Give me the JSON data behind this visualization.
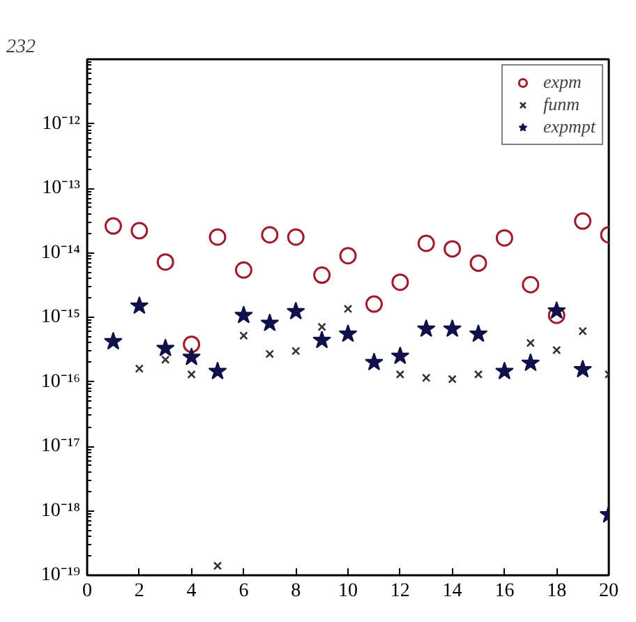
{
  "chart_data": {
    "type": "scatter",
    "x": [
      1,
      2,
      3,
      4,
      5,
      6,
      7,
      8,
      9,
      10,
      11,
      12,
      13,
      14,
      15,
      16,
      17,
      18,
      19,
      20
    ],
    "series": [
      {
        "name": "expm",
        "color": "#a01c2c",
        "marker": "circle",
        "values": [
          2.6e-14,
          2.2e-14,
          7.2e-15,
          3.8e-16,
          1.75e-14,
          5.4e-15,
          1.9e-14,
          1.75e-14,
          4.5e-15,
          9e-15,
          1.6e-15,
          3.5e-15,
          1.4e-14,
          1.15e-14,
          6.9e-15,
          1.7e-14,
          3.2e-15,
          1.07e-15,
          3.1e-14,
          1.9e-14
        ]
      },
      {
        "name": "funm",
        "color": "#333333",
        "marker": "cross",
        "values": [
          null,
          1.6e-16,
          2.2e-16,
          1.3e-16,
          1.4e-19,
          5.2e-16,
          2.7e-16,
          3e-16,
          7.1e-16,
          1.35e-15,
          null,
          1.3e-16,
          1.15e-16,
          1.1e-16,
          1.3e-16,
          null,
          4e-16,
          3.1e-16,
          6.1e-16,
          1.3e-16
        ]
      },
      {
        "name": "expmpt",
        "color": "#10104a",
        "marker": "star",
        "values": [
          4.2e-16,
          1.5e-15,
          3.3e-16,
          2.4e-16,
          1.45e-16,
          1.07e-15,
          8.1e-16,
          1.23e-15,
          4.4e-16,
          5.5e-16,
          2e-16,
          2.5e-16,
          6.6e-16,
          6.6e-16,
          5.5e-16,
          1.45e-16,
          1.95e-16,
          1.26e-15,
          1.55e-16,
          8.7e-19
        ]
      }
    ],
    "log": "y",
    "xlim": [
      0,
      20
    ],
    "xticks": [
      0,
      2,
      4,
      6,
      8,
      10,
      12,
      14,
      16,
      18,
      20
    ],
    "ylim": [
      1e-19,
      1e-11
    ],
    "yticks": [
      {
        "value": 1e-19,
        "label": "10⁻¹⁹"
      },
      {
        "value": 1e-18,
        "label": "10⁻¹⁸"
      },
      {
        "value": 1e-17,
        "label": "10⁻¹⁷"
      },
      {
        "value": 1e-16,
        "label": "10⁻¹⁶"
      },
      {
        "value": 1e-15,
        "label": "10⁻¹⁵"
      },
      {
        "value": 1e-14,
        "label": "10⁻¹⁴"
      },
      {
        "value": 1e-13,
        "label": "10⁻¹³"
      },
      {
        "value": 1e-12,
        "label": "10⁻¹²"
      }
    ],
    "grid": false,
    "legend": "top right",
    "annotations": [
      "232"
    ]
  }
}
